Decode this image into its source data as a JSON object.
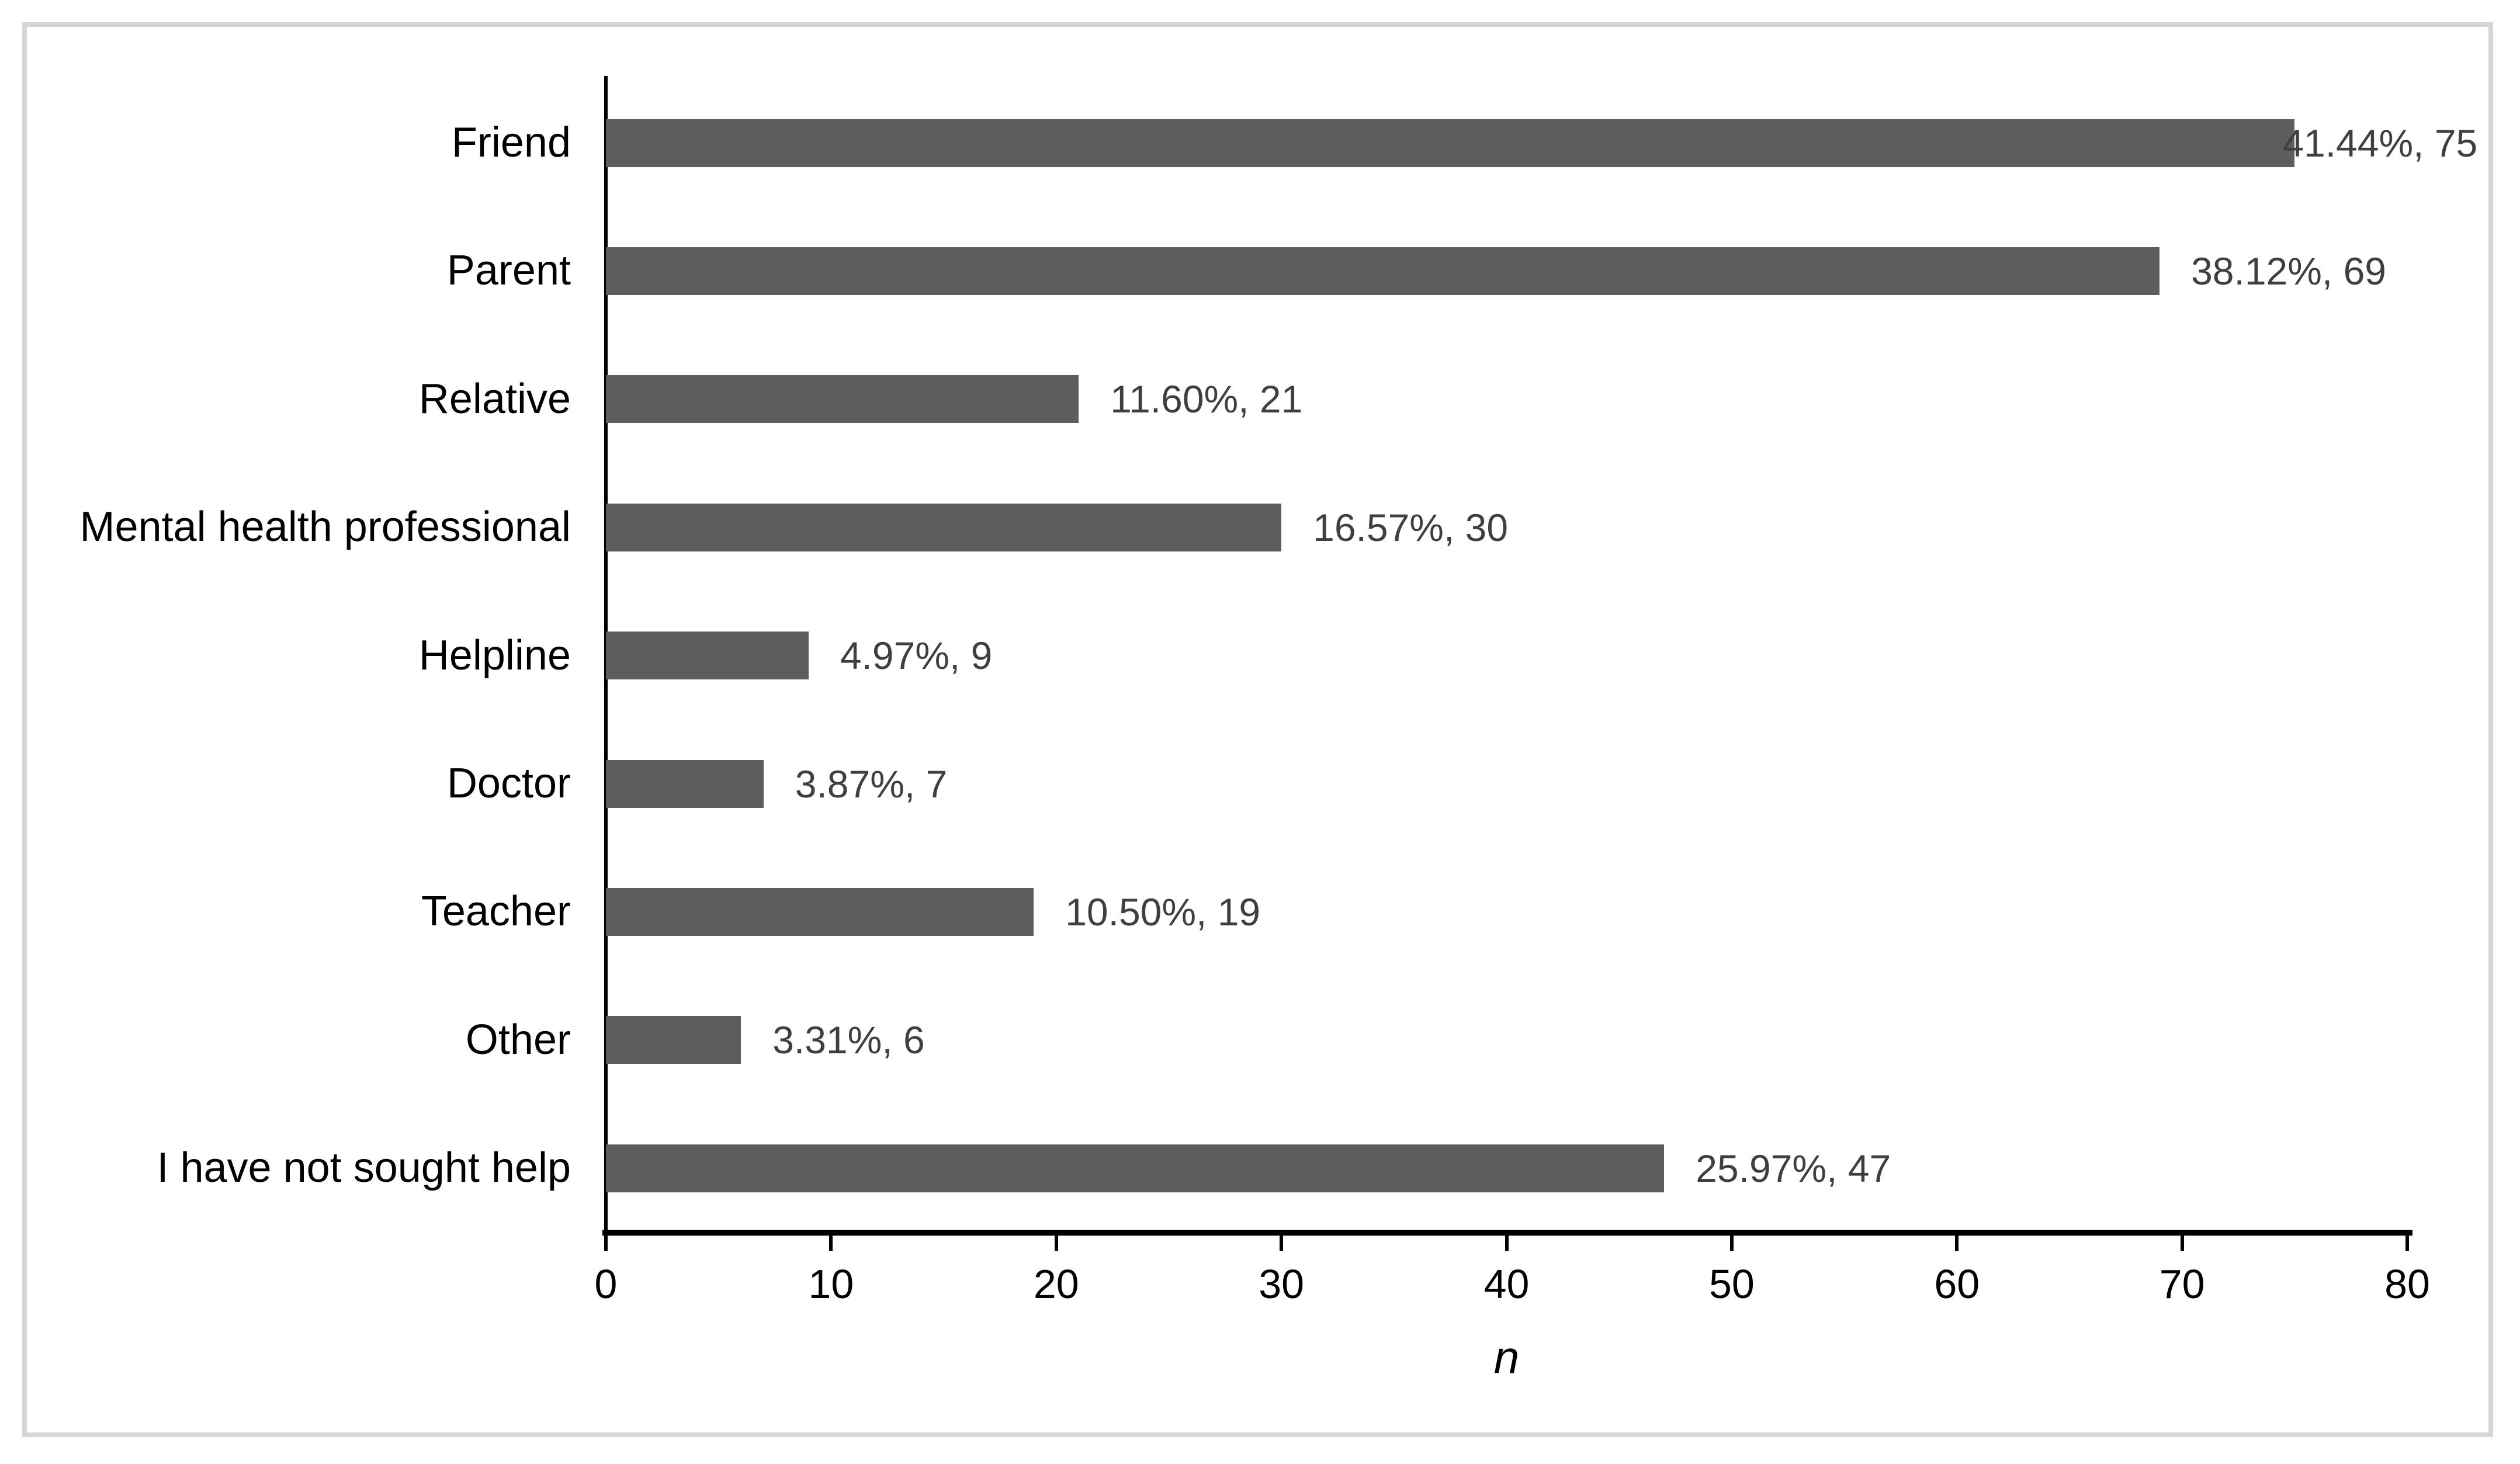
{
  "chart_data": {
    "type": "bar",
    "orientation": "horizontal",
    "title": "",
    "xlabel": "n",
    "ylabel": "",
    "categories": [
      "Friend",
      "Parent",
      "Relative",
      "Mental health professional",
      "Helpline",
      "Doctor",
      "Teacher",
      "Other",
      "I have not sought help"
    ],
    "values": [
      75,
      69,
      21,
      30,
      9,
      7,
      19,
      6,
      47
    ],
    "percentages": [
      41.44,
      38.12,
      11.6,
      16.57,
      4.97,
      3.87,
      10.5,
      3.31,
      25.97
    ],
    "data_labels": [
      "41.44%, 75",
      "38.12%, 69",
      "11.60%, 21",
      "16.57%, 30",
      "4.97%, 9",
      "3.87%, 7",
      "10.50%, 19",
      "3.31%, 6",
      "25.97%, 47"
    ],
    "xlim": [
      0,
      80
    ],
    "x_ticks": [
      "0",
      "10",
      "20",
      "30",
      "40",
      "50",
      "60",
      "70",
      "80"
    ],
    "grid": false,
    "legend": false,
    "bar_color": "#5d5d5d",
    "data_label_color": "#3f3f3f",
    "axis_color": "#000000",
    "frame_border_color": "#d6d6d6"
  }
}
